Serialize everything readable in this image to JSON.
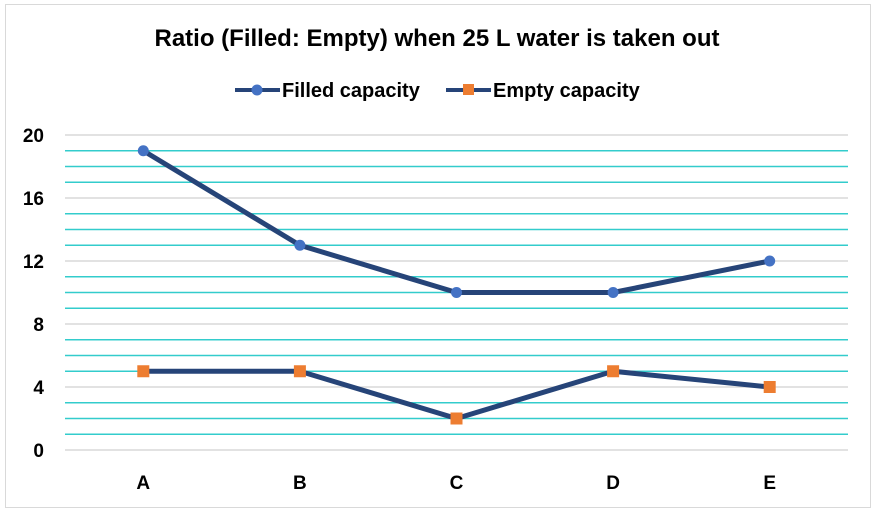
{
  "chart_data": {
    "type": "line",
    "title": "Ratio (Filled: Empty) when 25 L water is taken out",
    "xlabel": "",
    "ylabel": "",
    "categories": [
      "A",
      "B",
      "C",
      "D",
      "E"
    ],
    "series": [
      {
        "name": "Filled capacity",
        "values": [
          19,
          13,
          10,
          10,
          12
        ],
        "line_color": "#264478",
        "marker": "circle",
        "marker_color": "#4472C4"
      },
      {
        "name": "Empty capacity",
        "values": [
          5,
          5,
          2,
          5,
          4
        ],
        "line_color": "#264478",
        "marker": "square",
        "marker_color": "#ED7D31"
      }
    ],
    "ylim": [
      0,
      20
    ],
    "yticks": [
      0,
      4,
      8,
      12,
      16,
      20
    ],
    "ytick_labels": [
      "0",
      "4",
      "8",
      "12",
      "16",
      "20"
    ],
    "minor_gridline_step": 1,
    "major_gridline_color": "#d9d9d9",
    "minor_gridline_color": "#33cccc",
    "grid": true,
    "legend_position": "top"
  }
}
